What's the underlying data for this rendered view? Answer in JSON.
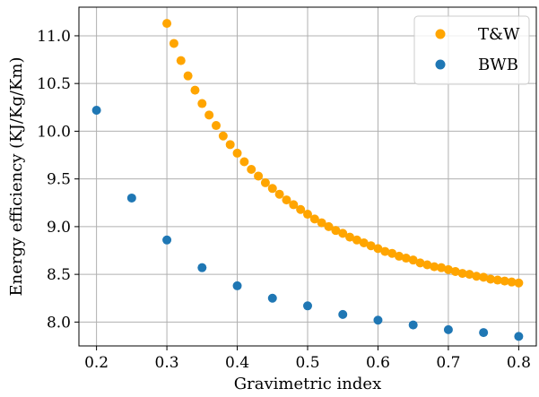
{
  "chart_data": {
    "type": "scatter",
    "xlabel": "Gravimetric index",
    "ylabel": "Energy efficiency (KJ/Kg/Km)",
    "xlim": [
      0.175,
      0.825
    ],
    "ylim": [
      7.75,
      11.3
    ],
    "xticks": [
      0.2,
      0.3,
      0.4,
      0.5,
      0.6,
      0.7,
      0.8
    ],
    "xtick_labels": [
      "0.2",
      "0.3",
      "0.4",
      "0.5",
      "0.6",
      "0.7",
      "0.8"
    ],
    "yticks": [
      8.0,
      8.5,
      9.0,
      9.5,
      10.0,
      10.5,
      11.0
    ],
    "ytick_labels": [
      "8.0",
      "8.5",
      "9.0",
      "9.5",
      "10.0",
      "10.5",
      "11.0"
    ],
    "grid": true,
    "legend_position": "top-right",
    "series": [
      {
        "name": "T&W",
        "color": "#ffa500",
        "x": [
          0.3,
          0.31,
          0.32,
          0.33,
          0.34,
          0.35,
          0.36,
          0.37,
          0.38,
          0.39,
          0.4,
          0.41,
          0.42,
          0.43,
          0.44,
          0.45,
          0.46,
          0.47,
          0.48,
          0.49,
          0.5,
          0.51,
          0.52,
          0.53,
          0.54,
          0.55,
          0.56,
          0.57,
          0.58,
          0.59,
          0.6,
          0.61,
          0.62,
          0.63,
          0.64,
          0.65,
          0.66,
          0.67,
          0.68,
          0.69,
          0.7,
          0.71,
          0.72,
          0.73,
          0.74,
          0.75,
          0.76,
          0.77,
          0.78,
          0.79,
          0.8
        ],
        "y": [
          11.13,
          10.92,
          10.74,
          10.58,
          10.43,
          10.29,
          10.17,
          10.06,
          9.95,
          9.86,
          9.77,
          9.68,
          9.6,
          9.53,
          9.46,
          9.4,
          9.34,
          9.28,
          9.23,
          9.18,
          9.13,
          9.08,
          9.04,
          9.0,
          8.96,
          8.93,
          8.89,
          8.86,
          8.83,
          8.8,
          8.77,
          8.74,
          8.72,
          8.69,
          8.67,
          8.65,
          8.62,
          8.6,
          8.58,
          8.57,
          8.55,
          8.53,
          8.51,
          8.5,
          8.48,
          8.47,
          8.45,
          8.44,
          8.43,
          8.42,
          8.41
        ]
      },
      {
        "name": "BWB",
        "color": "#1f77b4",
        "x": [
          0.2,
          0.25,
          0.3,
          0.35,
          0.4,
          0.45,
          0.5,
          0.55,
          0.6,
          0.65,
          0.7,
          0.75,
          0.8
        ],
        "y": [
          10.22,
          9.3,
          8.86,
          8.57,
          8.38,
          8.25,
          8.17,
          8.08,
          8.02,
          7.97,
          7.92,
          7.89,
          7.85
        ]
      }
    ]
  }
}
